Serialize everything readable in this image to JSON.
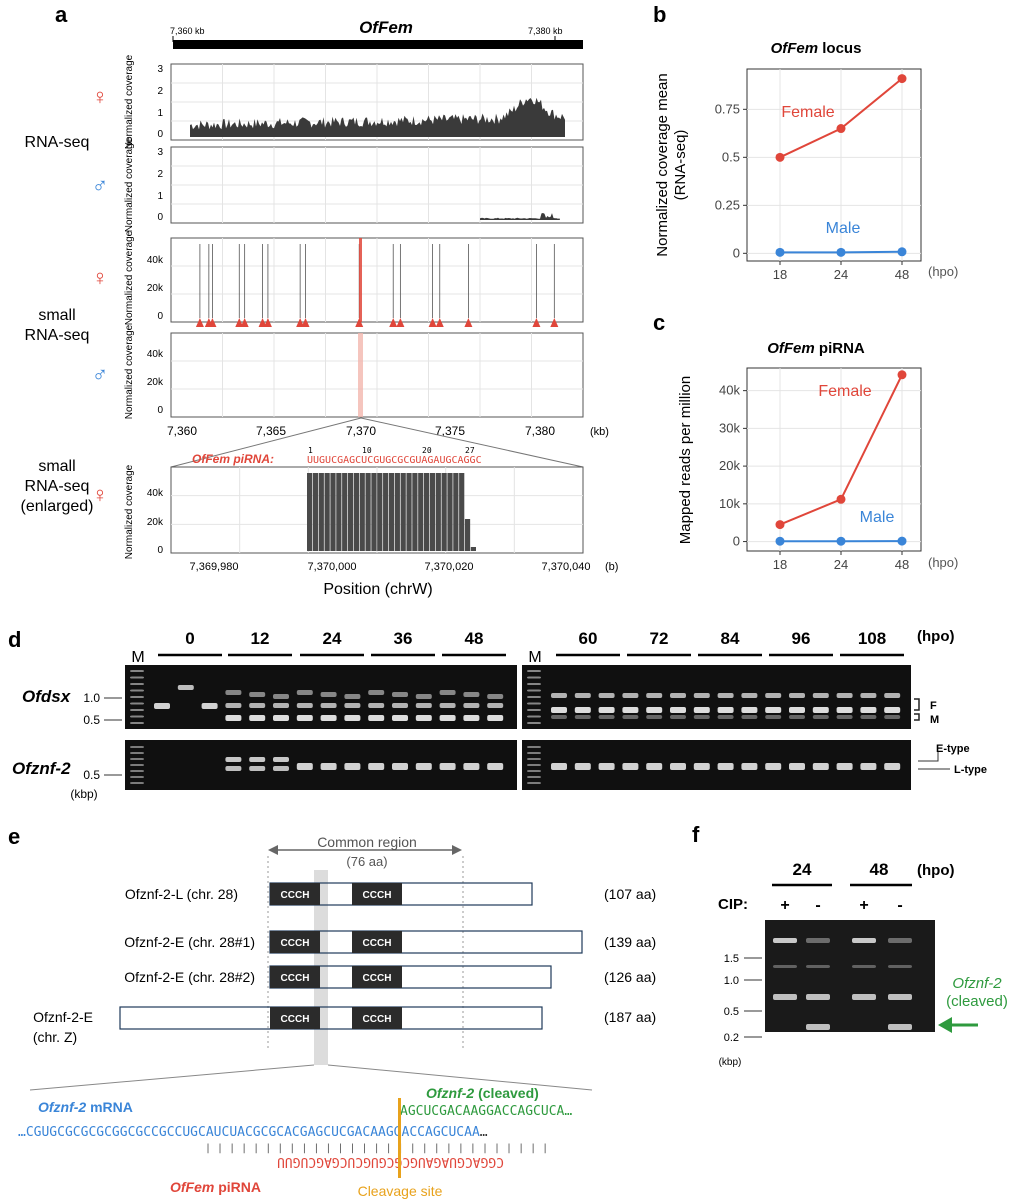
{
  "panel_letters": {
    "a": "a",
    "b": "b",
    "c": "c",
    "d": "d",
    "e": "e",
    "f": "f"
  },
  "colors": {
    "female": "#e0463a",
    "male": "#3a85d8",
    "cleaved": "#2e9a3e",
    "cleavage": "#e8a21c",
    "bar": "#3a3a3a",
    "grid": "#e4e4e4",
    "panel_border": "#555555"
  },
  "panel_a": {
    "gene_title": "OfFem",
    "scale_left": "7,360 kb",
    "scale_right": "7,380 kb",
    "row_labels": {
      "rnaseq": "RNA-seq",
      "smallrna_1": "small",
      "smallrna_2": "RNA-seq",
      "enl_1": "small",
      "enl_2": "RNA-seq",
      "enl_3": "(enlarged)"
    },
    "female_symbol": "♀",
    "male_symbol": "♂",
    "y_label": "Normalized coverage",
    "rna_ticks": [
      "3",
      "2",
      "1",
      "0"
    ],
    "small_ticks": [
      "40k",
      "20k",
      "0"
    ],
    "enl_ticks": [
      "40k",
      "20k",
      "0"
    ],
    "x_ticks": [
      "7,360",
      "7,365",
      "7,370",
      "7,375",
      "7,380"
    ],
    "x_unit": "(kb)",
    "enl_x_ticks": [
      "7,369,980",
      "7,370,000",
      "7,370,020",
      "7,370,040"
    ],
    "enl_x_unit": "(b)",
    "x_title": "Position (chrW)",
    "pirna_label": "OfFem piRNA:",
    "pirna_seq": "UUGUCGAGCUCGUGCGCGUAGAUGCAGGC",
    "pirna_positions": [
      "1",
      "10",
      "20",
      "27"
    ],
    "pirna_markers_kb": [
      7361.0,
      7361.5,
      7361.7,
      7363.2,
      7363.5,
      7364.5,
      7364.8,
      7366.6,
      7366.9,
      7369.9,
      7371.8,
      7372.2,
      7374.0,
      7374.4,
      7376.0,
      7379.8,
      7380.8
    ]
  },
  "chart_data": [
    {
      "type": "line",
      "title": "OfFem locus",
      "x": [
        18,
        24,
        48
      ],
      "xlabel": "(hpo)",
      "ylabel": "Normalized coverage mean (RNA-seq)",
      "ylabel_1": "Normalized coverage mean",
      "ylabel_2": "(RNA-seq)",
      "ylim": [
        -0.04,
        0.96
      ],
      "yticks": [
        "0",
        "0.25",
        "0.5",
        "0.75"
      ],
      "xticks": [
        "18",
        "24",
        "48"
      ],
      "series": [
        {
          "name": "Female",
          "values": [
            0.5,
            0.65,
            0.91
          ]
        },
        {
          "name": "Male",
          "values": [
            0.005,
            0.005,
            0.008
          ]
        }
      ]
    },
    {
      "type": "line",
      "title": "OfFem piRNA",
      "x": [
        18,
        24,
        48
      ],
      "xlabel": "(hpo)",
      "ylabel": "Mapped reads per million",
      "ylim": [
        -2500,
        46000
      ],
      "yticks": [
        "0",
        "10k",
        "20k",
        "30k",
        "40k"
      ],
      "xticks": [
        "18",
        "24",
        "48"
      ],
      "series": [
        {
          "name": "Female",
          "values": [
            4500,
            11200,
            44200
          ]
        },
        {
          "name": "Male",
          "values": [
            100,
            100,
            120
          ]
        }
      ]
    }
  ],
  "panel_d": {
    "marker": "M",
    "timepoints_left": [
      "0",
      "12",
      "24",
      "36",
      "48"
    ],
    "timepoints_right": [
      "60",
      "72",
      "84",
      "96",
      "108"
    ],
    "unit": "(hpo)",
    "gene1": "Ofdsx",
    "gene2": "Ofznf-2",
    "size_10": "1.0",
    "size_05a": "0.5",
    "size_05b": "0.5",
    "kbp": "(kbp)",
    "label_F": "F",
    "label_M": "M",
    "label_E": "E-type",
    "label_L": "L-type"
  },
  "panel_e": {
    "common_region": "Common region",
    "common_aa": "(76 aa)",
    "domain": "CCCH",
    "isoforms": [
      {
        "name": "Ofznf-2-L (chr. 28)",
        "length": "(107 aa)"
      },
      {
        "name": "Ofznf-2-E (chr. 28#1)",
        "length": "(139 aa)"
      },
      {
        "name": "Ofznf-2-E (chr. 28#2)",
        "length": "(126 aa)"
      },
      {
        "name": "Ofznf-2-E",
        "name2": "(chr. Z)",
        "length": "(187 aa)"
      }
    ],
    "mrna_label": "Ofznf-2 mRNA",
    "cleaved_label": "Ofznf-2 (cleaved)",
    "mrna_seq_blue": "…CGUGCGCGCGCGGCGCCGCCUGCAUCUACGCGCACG",
    "mrna_seq_green": "AGCUCGACAAGGACCAGCUCAA",
    "mrna_seq_end": "…",
    "cleaved_seq": "AGCUCGACAAGGACCAGCUCA…",
    "pairing": "| | | | | | | | | | | | | | | | | | | | | | | | | | | | |",
    "pirna_seq_rev": "CGGACGUAGAUGCGCGUGCUCGAGCUGUU",
    "pirna_label": "OfFem piRNA",
    "cleavage_label": "Cleavage site"
  },
  "panel_f": {
    "timepoints": [
      "24",
      "48"
    ],
    "unit": "(hpo)",
    "cip_label": "CIP:",
    "cip_states": [
      "+",
      "-",
      "+",
      "-"
    ],
    "sizes": [
      "1.5",
      "1.0",
      "0.5",
      "0.2"
    ],
    "kbp": "(kbp)",
    "product_1": "Ofznf-2",
    "product_2": "(cleaved)"
  }
}
